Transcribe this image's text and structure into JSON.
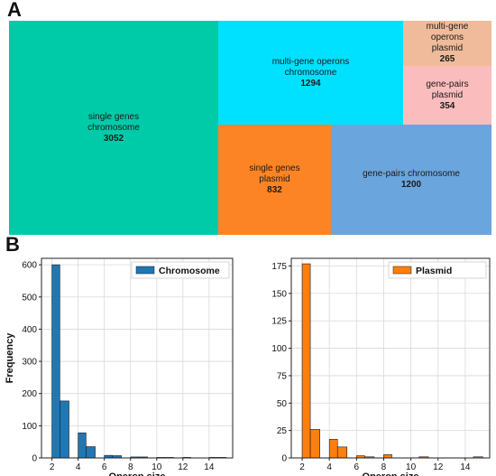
{
  "panels": {
    "a": "A",
    "b": "B"
  },
  "treemap": {
    "tiles": [
      {
        "lines": [
          "single genes",
          "chromosome"
        ],
        "value": "3052",
        "color": "#00cba9"
      },
      {
        "lines": [
          "multi-gene operons",
          "chromosome"
        ],
        "value": "1294",
        "color": "#00e0ff"
      },
      {
        "lines": [
          "multi-gene",
          "operons",
          "plasmid"
        ],
        "value": "265",
        "color": "#efbb9a"
      },
      {
        "lines": [
          "gene-pairs",
          "plasmid"
        ],
        "value": "354",
        "color": "#fbbcbd"
      },
      {
        "lines": [
          "single genes",
          "plasmid"
        ],
        "value": "832",
        "color": "#fc8425"
      },
      {
        "lines": [
          "gene-pairs chromosome"
        ],
        "value": "1200",
        "color": "#6aa5dd"
      }
    ]
  },
  "chart_data": [
    {
      "type": "bar",
      "legend": "Chromosome",
      "legend_position": "top-right",
      "color": "#1f77b4",
      "xlabel": "Operon size",
      "ylabel": "Frequency",
      "xlim": [
        1.2,
        15.8
      ],
      "ylim": [
        0,
        620
      ],
      "xticks": [
        2,
        4,
        6,
        8,
        10,
        12,
        14
      ],
      "yticks": [
        0,
        100,
        200,
        300,
        400,
        500,
        600
      ],
      "grid": true,
      "bins": [
        {
          "x0": 2.0,
          "x1": 2.6,
          "count": 600
        },
        {
          "x0": 2.6,
          "x1": 3.3,
          "count": 177
        },
        {
          "x0": 4.0,
          "x1": 4.6,
          "count": 78
        },
        {
          "x0": 4.6,
          "x1": 5.3,
          "count": 35
        },
        {
          "x0": 6.0,
          "x1": 6.6,
          "count": 8
        },
        {
          "x0": 6.6,
          "x1": 7.3,
          "count": 7
        },
        {
          "x0": 8.0,
          "x1": 8.6,
          "count": 3
        },
        {
          "x0": 8.6,
          "x1": 9.3,
          "count": 3
        },
        {
          "x0": 10.0,
          "x1": 10.6,
          "count": 1
        },
        {
          "x0": 10.6,
          "x1": 11.3,
          "count": 1
        },
        {
          "x0": 12.0,
          "x1": 12.6,
          "count": 1
        },
        {
          "x0": 14.0,
          "x1": 14.6,
          "count": 1
        },
        {
          "x0": 14.6,
          "x1": 15.3,
          "count": 1
        }
      ]
    },
    {
      "type": "bar",
      "legend": "Plasmid",
      "legend_position": "top-right",
      "color": "#ff7f0e",
      "xlabel": "Operon size",
      "ylabel": "",
      "xlim": [
        1.2,
        15.8
      ],
      "ylim": [
        0,
        182
      ],
      "xticks": [
        2,
        4,
        6,
        8,
        10,
        12,
        14
      ],
      "yticks": [
        0,
        25,
        50,
        75,
        100,
        125,
        150,
        175
      ],
      "grid": true,
      "bins": [
        {
          "x0": 2.0,
          "x1": 2.6,
          "count": 177
        },
        {
          "x0": 2.6,
          "x1": 3.3,
          "count": 26
        },
        {
          "x0": 4.0,
          "x1": 4.6,
          "count": 17
        },
        {
          "x0": 4.6,
          "x1": 5.3,
          "count": 10
        },
        {
          "x0": 6.0,
          "x1": 6.6,
          "count": 2
        },
        {
          "x0": 6.6,
          "x1": 7.3,
          "count": 1
        },
        {
          "x0": 8.0,
          "x1": 8.6,
          "count": 3
        },
        {
          "x0": 10.6,
          "x1": 11.3,
          "count": 1
        },
        {
          "x0": 14.6,
          "x1": 15.3,
          "count": 1
        }
      ]
    }
  ]
}
